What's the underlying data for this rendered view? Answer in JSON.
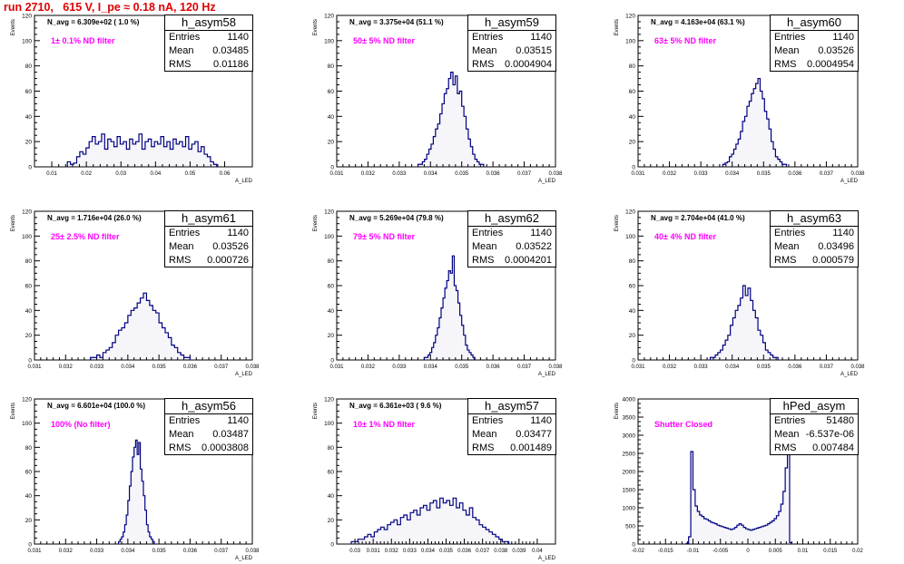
{
  "page": {
    "title": "run 2710,   615 V, I_pe ≈ 0.18 nA, 120 Hz"
  },
  "stats_labels": {
    "entries": "Entries",
    "mean": "Mean",
    "rms": "RMS"
  },
  "colors": {
    "histogram": "#000080",
    "title": "#e00000",
    "annotation": "#ff00ff"
  },
  "chart_data": [
    {
      "type": "histogram",
      "name": "h_asym58",
      "entries": "1140",
      "mean": "0.03485",
      "rms": "0.01186",
      "navg_text": "N_avg = 6.309e+02 ( 1.0 %)",
      "annotation": "1± 0.1% ND filter",
      "xlabel": "A_LED",
      "ylabel": "Events",
      "xlim": [
        0.005,
        0.068
      ],
      "ylim": [
        0,
        120
      ],
      "xticks": [
        0.01,
        0.02,
        0.03,
        0.04,
        0.05,
        0.06
      ],
      "xticklabels": [
        "0.01",
        "0.02",
        "0.03",
        "0.04",
        "0.05",
        "0.06"
      ],
      "yticks": [
        0,
        20,
        40,
        60,
        80,
        100,
        120
      ],
      "x_start": 0.0145,
      "bin_width": 0.0009,
      "values": [
        4,
        2,
        3,
        8,
        12,
        10,
        15,
        20,
        24,
        18,
        20,
        26,
        14,
        22,
        20,
        16,
        24,
        18,
        20,
        14,
        22,
        18,
        20,
        26,
        14,
        20,
        22,
        16,
        20,
        18,
        24,
        16,
        20,
        14,
        22,
        18,
        20,
        16,
        24,
        14,
        18,
        20,
        12,
        16,
        10,
        8,
        4,
        2
      ]
    },
    {
      "type": "histogram",
      "name": "h_asym59",
      "entries": "1140",
      "mean": "0.03515",
      "rms": "0.0004904",
      "navg_text": "N_avg = 3.375e+04 (51.1 %)",
      "annotation": "50± 5% ND filter",
      "xlabel": "A_LED",
      "ylabel": "Events",
      "xlim": [
        0.031,
        0.038
      ],
      "ylim": [
        0,
        120
      ],
      "xticks": [
        0.031,
        0.032,
        0.033,
        0.034,
        0.035,
        0.036,
        0.037,
        0.038
      ],
      "xticklabels": [
        "0.031",
        "0.032",
        "0.033",
        "0.034",
        "0.035",
        "0.036",
        "0.037",
        "0.038"
      ],
      "yticks": [
        0,
        20,
        40,
        60,
        80,
        100,
        120
      ],
      "x_start": 0.0336,
      "bin_width": 7e-05,
      "values": [
        2,
        2,
        4,
        6,
        10,
        14,
        18,
        24,
        30,
        34,
        42,
        50,
        58,
        62,
        70,
        75,
        65,
        72,
        58,
        60,
        48,
        40,
        30,
        22,
        16,
        10,
        6,
        4,
        2,
        2
      ]
    },
    {
      "type": "histogram",
      "name": "h_asym60",
      "entries": "1140",
      "mean": "0.03526",
      "rms": "0.0004954",
      "navg_text": "N_avg = 4.163e+04 (63.1 %)",
      "annotation": "63± 5% ND filter",
      "xlabel": "A_LED",
      "ylabel": "Events",
      "xlim": [
        0.031,
        0.038
      ],
      "ylim": [
        0,
        120
      ],
      "xticks": [
        0.031,
        0.032,
        0.033,
        0.034,
        0.035,
        0.036,
        0.037,
        0.038
      ],
      "xticklabels": [
        "0.031",
        "0.032",
        "0.033",
        "0.034",
        "0.035",
        "0.036",
        "0.037",
        "0.038"
      ],
      "yticks": [
        0,
        20,
        40,
        60,
        80,
        100,
        120
      ],
      "x_start": 0.0337,
      "bin_width": 7e-05,
      "values": [
        2,
        3,
        4,
        8,
        10,
        14,
        18,
        22,
        28,
        36,
        40,
        48,
        52,
        58,
        62,
        66,
        70,
        60,
        54,
        44,
        38,
        30,
        20,
        14,
        8,
        6,
        4,
        2,
        2
      ]
    },
    {
      "type": "histogram",
      "name": "h_asym61",
      "entries": "1140",
      "mean": "0.03526",
      "rms": "0.000726",
      "navg_text": "N_avg = 1.716e+04 (26.0 %)",
      "annotation": "25± 2.5% ND filter",
      "xlabel": "A_LED",
      "ylabel": "Events",
      "xlim": [
        0.031,
        0.038
      ],
      "ylim": [
        0,
        120
      ],
      "xticks": [
        0.031,
        0.032,
        0.033,
        0.034,
        0.035,
        0.036,
        0.037,
        0.038
      ],
      "xticklabels": [
        "0.031",
        "0.032",
        "0.033",
        "0.034",
        "0.035",
        "0.036",
        "0.037",
        "0.038"
      ],
      "yticks": [
        0,
        20,
        40,
        60,
        80,
        100,
        120
      ],
      "x_start": 0.0328,
      "bin_width": 0.0001,
      "values": [
        2,
        2,
        4,
        2,
        6,
        8,
        10,
        14,
        20,
        24,
        26,
        30,
        36,
        40,
        42,
        46,
        50,
        54,
        48,
        44,
        40,
        38,
        30,
        26,
        22,
        18,
        12,
        10,
        6,
        4,
        2,
        2
      ]
    },
    {
      "type": "histogram",
      "name": "h_asym62",
      "entries": "1140",
      "mean": "0.03522",
      "rms": "0.0004201",
      "navg_text": "N_avg = 5.269e+04 (79.8 %)",
      "annotation": "79± 5% ND filter",
      "xlabel": "A_LED",
      "ylabel": "Events",
      "xlim": [
        0.031,
        0.038
      ],
      "ylim": [
        0,
        120
      ],
      "xticks": [
        0.031,
        0.032,
        0.033,
        0.034,
        0.035,
        0.036,
        0.037,
        0.038
      ],
      "xticklabels": [
        "0.031",
        "0.032",
        "0.033",
        "0.034",
        "0.035",
        "0.036",
        "0.037",
        "0.038"
      ],
      "yticks": [
        0,
        20,
        40,
        60,
        80,
        100,
        120
      ],
      "x_start": 0.0338,
      "bin_width": 6e-05,
      "values": [
        2,
        2,
        4,
        6,
        10,
        14,
        20,
        26,
        34,
        42,
        50,
        58,
        64,
        72,
        70,
        84,
        60,
        56,
        46,
        36,
        28,
        20,
        12,
        8,
        6,
        4,
        2
      ]
    },
    {
      "type": "histogram",
      "name": "h_asym63",
      "entries": "1140",
      "mean": "0.03496",
      "rms": "0.000579",
      "navg_text": "N_avg = 2.704e+04 (41.0 %)",
      "annotation": "40± 4% ND filter",
      "xlabel": "A_LED",
      "ylabel": "Events",
      "xlim": [
        0.031,
        0.038
      ],
      "ylim": [
        0,
        120
      ],
      "xticks": [
        0.031,
        0.032,
        0.033,
        0.034,
        0.035,
        0.036,
        0.037,
        0.038
      ],
      "xticklabels": [
        "0.031",
        "0.032",
        "0.033",
        "0.034",
        "0.035",
        "0.036",
        "0.037",
        "0.038"
      ],
      "yticks": [
        0,
        20,
        40,
        60,
        80,
        100,
        120
      ],
      "x_start": 0.0333,
      "bin_width": 8e-05,
      "values": [
        2,
        2,
        4,
        6,
        8,
        12,
        16,
        20,
        28,
        34,
        40,
        44,
        50,
        60,
        52,
        58,
        48,
        40,
        34,
        24,
        20,
        14,
        8,
        6,
        4,
        2,
        2
      ]
    },
    {
      "type": "histogram",
      "name": "h_asym56",
      "entries": "1140",
      "mean": "0.03487",
      "rms": "0.0003808",
      "navg_text": "N_avg = 6.601e+04 (100.0 %)",
      "annotation": "100% (No filter)",
      "xlabel": "A_LED",
      "ylabel": "Events",
      "xlim": [
        0.031,
        0.038
      ],
      "ylim": [
        0,
        120
      ],
      "xticks": [
        0.031,
        0.032,
        0.033,
        0.034,
        0.035,
        0.036,
        0.037,
        0.038
      ],
      "xticklabels": [
        "0.031",
        "0.032",
        "0.033",
        "0.034",
        "0.035",
        "0.036",
        "0.037",
        "0.038"
      ],
      "yticks": [
        0,
        20,
        40,
        60,
        80,
        100,
        120
      ],
      "x_start": 0.0337,
      "bin_width": 5e-05,
      "values": [
        2,
        4,
        6,
        10,
        16,
        24,
        36,
        48,
        60,
        72,
        80,
        86,
        74,
        84,
        62,
        52,
        40,
        28,
        16,
        10,
        6,
        4,
        2
      ]
    },
    {
      "type": "histogram",
      "name": "h_asym57",
      "entries": "1140",
      "mean": "0.03477",
      "rms": "0.001489",
      "navg_text": "N_avg = 6.361e+03 ( 9.6 %)",
      "annotation": "10± 1% ND filter",
      "xlabel": "A_LED",
      "ylabel": "Events",
      "xlim": [
        0.029,
        0.041
      ],
      "ylim": [
        0,
        120
      ],
      "xticks": [
        0.03,
        0.031,
        0.032,
        0.033,
        0.034,
        0.035,
        0.036,
        0.037,
        0.038,
        0.039,
        0.04
      ],
      "xticklabels": [
        "0.03",
        "0.031",
        "0.032",
        "0.033",
        "0.034",
        "0.035",
        "0.036",
        "0.037",
        "0.038",
        "0.039",
        "0.04"
      ],
      "yticks": [
        0,
        20,
        40,
        60,
        80,
        100,
        120
      ],
      "x_start": 0.0298,
      "bin_width": 0.00018,
      "values": [
        2,
        2,
        4,
        4,
        6,
        8,
        6,
        10,
        12,
        14,
        12,
        16,
        18,
        20,
        16,
        22,
        24,
        20,
        26,
        28,
        24,
        30,
        32,
        28,
        34,
        36,
        30,
        38,
        34,
        36,
        32,
        38,
        30,
        34,
        28,
        24,
        30,
        22,
        20,
        16,
        14,
        12,
        10,
        8,
        6,
        4,
        2,
        2
      ]
    },
    {
      "type": "histogram",
      "name": "hPed_asym",
      "entries": "51480",
      "mean": "-6.537e-06",
      "rms": "0.007484",
      "navg_text": "",
      "annotation": "Shutter Closed",
      "xlabel": "",
      "ylabel": "Events",
      "xlim": [
        -0.02,
        0.02
      ],
      "ylim": [
        0,
        4000
      ],
      "xticks": [
        -0.02,
        -0.015,
        -0.01,
        -0.005,
        0,
        0.005,
        0.01,
        0.015,
        0.02
      ],
      "xticklabels": [
        "-0.02",
        "-0.015",
        "-0.01",
        "-0.005",
        "0",
        "0.005",
        "0.01",
        "0.015",
        "0.02"
      ],
      "yticks": [
        0,
        500,
        1000,
        1500,
        2000,
        2500,
        3000,
        3500,
        4000
      ],
      "x_start": -0.0112,
      "bin_width": 0.0004,
      "values": [
        20,
        200,
        2550,
        1500,
        1050,
        900,
        800,
        760,
        700,
        680,
        640,
        600,
        580,
        560,
        520,
        500,
        480,
        460,
        440,
        420,
        400,
        420,
        460,
        520,
        560,
        520,
        460,
        420,
        400,
        380,
        400,
        420,
        440,
        460,
        480,
        500,
        520,
        560,
        600,
        640,
        700,
        780,
        900,
        1100,
        1450,
        2100,
        3300,
        40
      ]
    }
  ]
}
